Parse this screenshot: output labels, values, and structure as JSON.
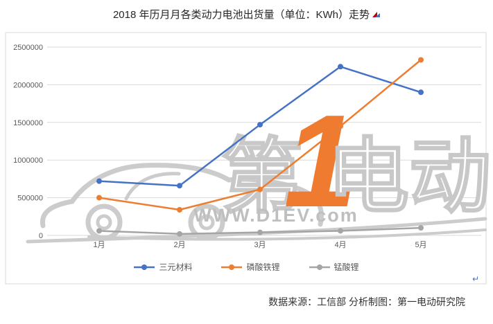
{
  "title": "2018 年历月月各类动力电池出货量（单位：KWh）走势",
  "source_note": "数据来源：工信部 分析制图：第一电动研究院",
  "watermark": {
    "brand_left": "第",
    "brand_number": "1",
    "brand_right": "电动",
    "url": "WWW.D1EV.com"
  },
  "colors": {
    "series_blue": "#4472C4",
    "series_orange": "#ED7D31",
    "series_gray": "#A5A5A5",
    "gridline": "#D9D9D9",
    "axis_text": "#595959"
  },
  "chart_data": {
    "type": "line",
    "title": "2018 年历月月各类动力电池出货量（单位：KWh）走势",
    "categories": [
      "1月",
      "2月",
      "3月",
      "4月",
      "5月"
    ],
    "series": [
      {
        "name": "三元材料",
        "color": "#4472C4",
        "values": [
          720000,
          660000,
          1470000,
          2240000,
          1900000
        ]
      },
      {
        "name": "磷酸铁锂",
        "color": "#ED7D31",
        "values": [
          500000,
          340000,
          610000,
          1450000,
          2330000
        ]
      },
      {
        "name": "锰酸锂",
        "color": "#A5A5A5",
        "values": [
          60000,
          20000,
          40000,
          60000,
          100000
        ]
      }
    ],
    "xlabel": "",
    "ylabel": "",
    "ylim": [
      0,
      2500000
    ],
    "ytick_step": 500000,
    "yticks": [
      "0",
      "500000",
      "1000000",
      "1500000",
      "2000000",
      "2500000"
    ],
    "grid": true,
    "legend_position": "bottom"
  }
}
